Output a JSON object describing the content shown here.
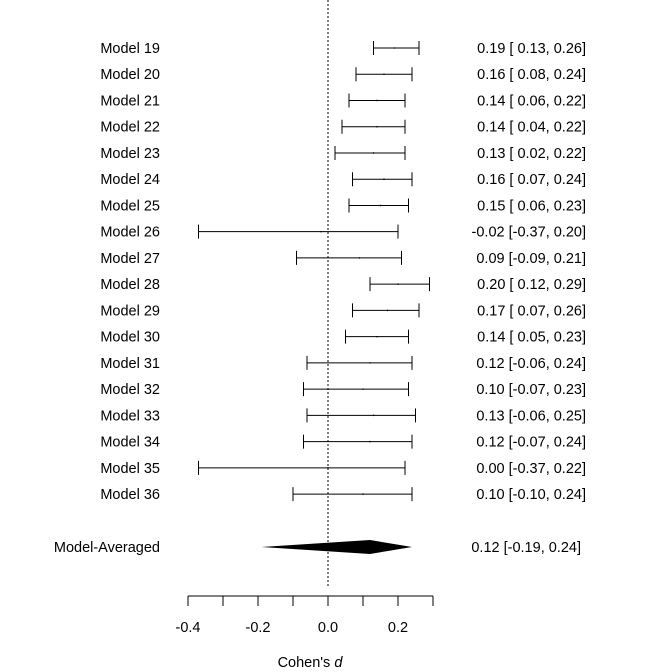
{
  "chart_data": {
    "type": "forest",
    "xlabel": "Cohen's d",
    "xlim": [
      -0.4,
      0.3
    ],
    "xticks": [
      -0.4,
      -0.3,
      -0.2,
      -0.1,
      0.0,
      0.1,
      0.2,
      0.3
    ],
    "xtick_labels": [
      "-0.4",
      "",
      "-0.2",
      "",
      "0.0",
      "",
      "0.2",
      ""
    ],
    "reference_line": 0,
    "grid": false,
    "studies": [
      {
        "label": "Model 19",
        "estimate": 0.19,
        "lower": 0.13,
        "upper": 0.26,
        "text": "0.19 [ 0.13, 0.26]"
      },
      {
        "label": "Model 20",
        "estimate": 0.16,
        "lower": 0.08,
        "upper": 0.24,
        "text": "0.16 [ 0.08, 0.24]"
      },
      {
        "label": "Model 21",
        "estimate": 0.14,
        "lower": 0.06,
        "upper": 0.22,
        "text": "0.14 [ 0.06, 0.22]"
      },
      {
        "label": "Model 22",
        "estimate": 0.14,
        "lower": 0.04,
        "upper": 0.22,
        "text": "0.14 [ 0.04, 0.22]"
      },
      {
        "label": "Model 23",
        "estimate": 0.13,
        "lower": 0.02,
        "upper": 0.22,
        "text": "0.13 [ 0.02, 0.22]"
      },
      {
        "label": "Model 24",
        "estimate": 0.16,
        "lower": 0.07,
        "upper": 0.24,
        "text": "0.16 [ 0.07, 0.24]"
      },
      {
        "label": "Model 25",
        "estimate": 0.15,
        "lower": 0.06,
        "upper": 0.23,
        "text": "0.15 [ 0.06, 0.23]"
      },
      {
        "label": "Model 26",
        "estimate": -0.02,
        "lower": -0.37,
        "upper": 0.2,
        "text": "-0.02 [-0.37, 0.20]"
      },
      {
        "label": "Model 27",
        "estimate": 0.09,
        "lower": -0.09,
        "upper": 0.21,
        "text": "0.09 [-0.09, 0.21]"
      },
      {
        "label": "Model 28",
        "estimate": 0.2,
        "lower": 0.12,
        "upper": 0.29,
        "text": "0.20 [ 0.12, 0.29]"
      },
      {
        "label": "Model 29",
        "estimate": 0.17,
        "lower": 0.07,
        "upper": 0.26,
        "text": "0.17 [ 0.07, 0.26]"
      },
      {
        "label": "Model 30",
        "estimate": 0.14,
        "lower": 0.05,
        "upper": 0.23,
        "text": "0.14 [ 0.05, 0.23]"
      },
      {
        "label": "Model 31",
        "estimate": 0.12,
        "lower": -0.06,
        "upper": 0.24,
        "text": "0.12 [-0.06, 0.24]"
      },
      {
        "label": "Model 32",
        "estimate": 0.1,
        "lower": -0.07,
        "upper": 0.23,
        "text": "0.10 [-0.07, 0.23]"
      },
      {
        "label": "Model 33",
        "estimate": 0.13,
        "lower": -0.06,
        "upper": 0.25,
        "text": "0.13 [-0.06, 0.25]"
      },
      {
        "label": "Model 34",
        "estimate": 0.12,
        "lower": -0.07,
        "upper": 0.24,
        "text": "0.12 [-0.07, 0.24]"
      },
      {
        "label": "Model 35",
        "estimate": 0.0,
        "lower": -0.37,
        "upper": 0.22,
        "text": "0.00 [-0.37, 0.22]"
      },
      {
        "label": "Model 36",
        "estimate": 0.1,
        "lower": -0.1,
        "upper": 0.24,
        "text": "0.10 [-0.10, 0.24]"
      }
    ],
    "summary": {
      "label": "Model-Averaged",
      "estimate": 0.12,
      "lower": -0.19,
      "upper": 0.24,
      "text": "0.12 [-0.19, 0.24]"
    }
  }
}
